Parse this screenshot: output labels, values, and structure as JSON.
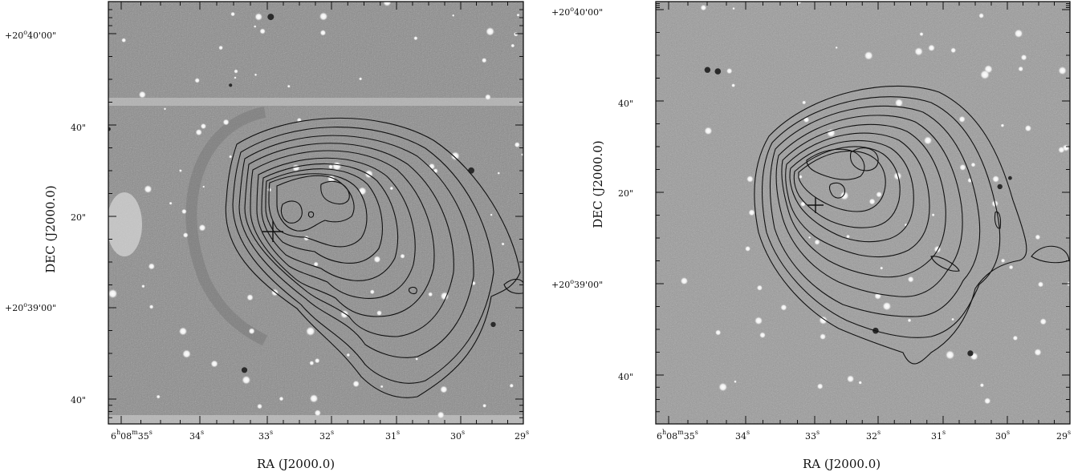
{
  "figure": {
    "panels": [
      {
        "id": "left",
        "xlabel": "RA (J2000.0)",
        "ylabel": "DEC (J2000.0)",
        "xticks": [
          {
            "h": "6",
            "m": "08",
            "s": "35",
            "show_hm": true
          },
          {
            "s": "34"
          },
          {
            "s": "33"
          },
          {
            "s": "32"
          },
          {
            "s": "31"
          },
          {
            "s": "30"
          },
          {
            "s": "29"
          }
        ],
        "yticks": [
          {
            "label": "+20°40'00\"",
            "deg": "+20",
            "min": "40",
            "sec": "00",
            "full": true
          },
          {
            "label": "40\""
          },
          {
            "label": "20\""
          },
          {
            "label": "+20°39'00\"",
            "deg": "+20",
            "min": "39",
            "sec": "00",
            "full": true
          },
          {
            "label": "40\""
          }
        ],
        "cross_marker": true
      },
      {
        "id": "right",
        "xlabel": "RA (J2000.0)",
        "ylabel": "DEC (J2000.0)",
        "xticks": [
          {
            "h": "6",
            "m": "08",
            "s": "35",
            "show_hm": true
          },
          {
            "s": "34"
          },
          {
            "s": "33"
          },
          {
            "s": "32"
          },
          {
            "s": "31"
          },
          {
            "s": "30"
          },
          {
            "s": "29"
          }
        ],
        "yticks": [
          {
            "label": "+20°40'00\"",
            "deg": "+20",
            "min": "40",
            "sec": "00",
            "full": true
          },
          {
            "label": "40\""
          },
          {
            "label": "20\""
          },
          {
            "label": "+20°39'00\"",
            "deg": "+20",
            "min": "39",
            "sec": "00",
            "full": true
          },
          {
            "label": "40\""
          }
        ],
        "cross_marker": true
      }
    ],
    "colors": {
      "background_gray": "#8c8c8c",
      "contour": "#111111",
      "frame": "#111111",
      "star": "#f4f4f4"
    }
  }
}
